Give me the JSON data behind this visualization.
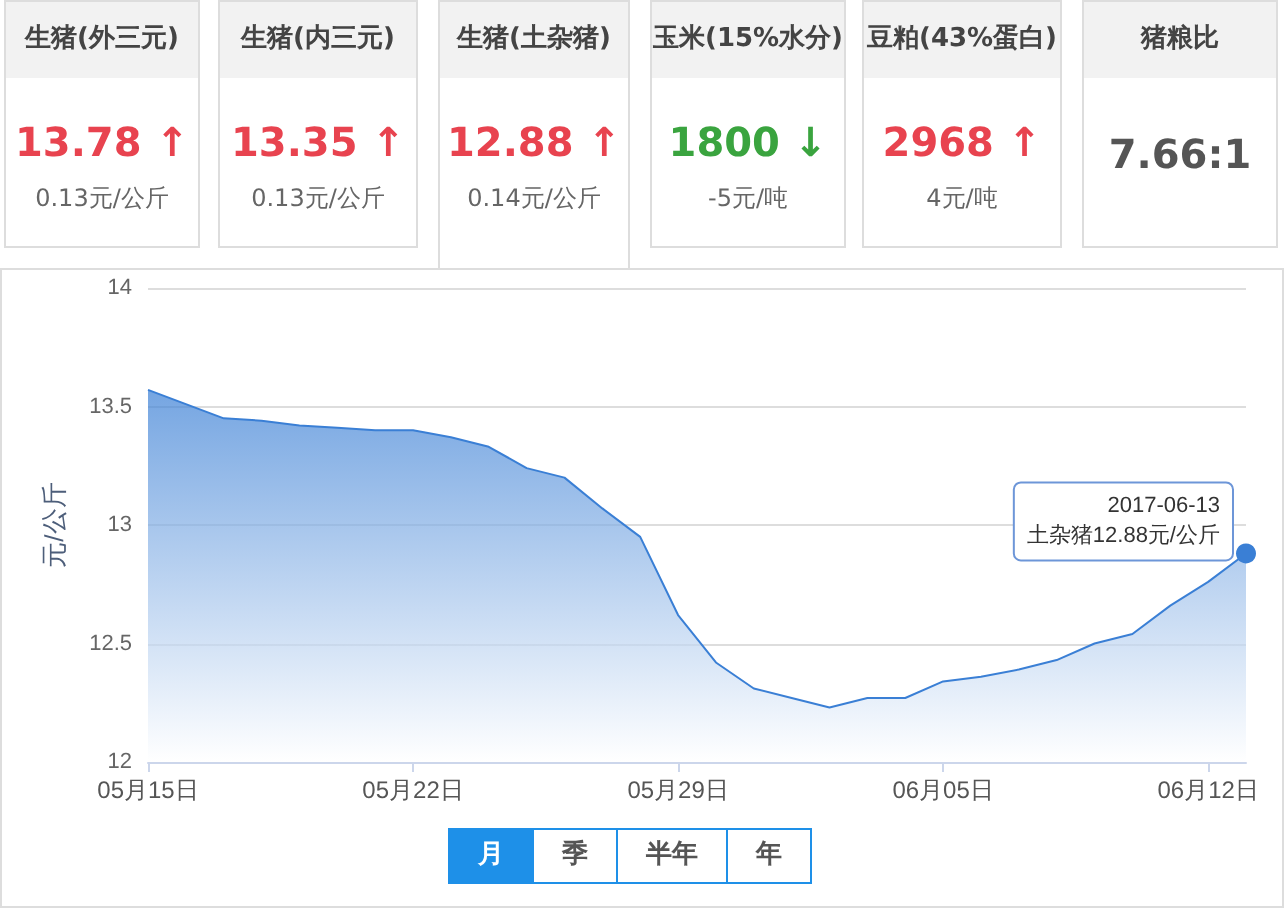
{
  "chart_data": [
    {
      "type": "other",
      "annotations": [
        "生猪(外三元)",
        "13.78 ↑",
        "0.13元/公斤"
      ],
      "color": "#e8434f"
    },
    {
      "type": "other",
      "annotations": [
        "生猪(内三元)",
        "13.35 ↑",
        "0.13元/公斤"
      ],
      "color": "#e8434f"
    },
    {
      "type": "other",
      "annotations": [
        "生猪(土杂猪)",
        "12.88 ↑",
        "0.14元/公斤"
      ],
      "color": "#e8434f"
    },
    {
      "type": "other",
      "annotations": [
        "玉米(15%水分)",
        "1800 ↓",
        "-5元/吨"
      ],
      "color": "#3aa43f"
    },
    {
      "type": "other",
      "annotations": [
        "豆粕(43%蛋白)",
        "2968 ↑",
        "4元/吨"
      ],
      "color": "#e8434f"
    },
    {
      "type": "other",
      "annotations": [
        "猪粮比",
        "7.66:1"
      ],
      "color": "#555555"
    },
    {
      "type": "area",
      "ylabel": "元/公斤",
      "x": [
        "2017-05-15",
        "2017-05-16",
        "2017-05-17",
        "2017-05-18",
        "2017-05-19",
        "2017-05-20",
        "2017-05-21",
        "2017-05-22",
        "2017-05-23",
        "2017-05-24",
        "2017-05-25",
        "2017-05-26",
        "2017-05-27",
        "2017-05-28",
        "2017-05-29",
        "2017-05-30",
        "2017-05-31",
        "2017-06-01",
        "2017-06-02",
        "2017-06-03",
        "2017-06-04",
        "2017-06-05",
        "2017-06-06",
        "2017-06-07",
        "2017-06-08",
        "2017-06-09",
        "2017-06-10",
        "2017-06-11",
        "2017-06-12",
        "2017-06-13"
      ],
      "series": [
        {
          "color": "#3a7fd5",
          "values": [
            13.57,
            13.51,
            13.45,
            13.44,
            13.42,
            13.41,
            13.4,
            13.4,
            13.37,
            13.33,
            13.24,
            13.2,
            13.07,
            12.95,
            12.62,
            12.42,
            12.31,
            12.27,
            12.23,
            12.27,
            12.27,
            12.34,
            12.36,
            12.39,
            12.43,
            12.5,
            12.54,
            12.66,
            12.76,
            12.88
          ]
        }
      ],
      "xlim": [
        "2017-05-15",
        "2017-06-13"
      ],
      "xticks": [
        {
          "value": "2017-05-15",
          "label": "05月15日"
        },
        {
          "value": "2017-05-22",
          "label": "05月22日"
        },
        {
          "value": "2017-05-29",
          "label": "05月29日"
        },
        {
          "value": "2017-06-05",
          "label": "06月05日"
        },
        {
          "value": "2017-06-12",
          "label": "06月12日"
        }
      ],
      "ylim": [
        12,
        14
      ],
      "yticks": [
        12,
        12.5,
        13,
        13.5,
        14
      ],
      "grid": "y",
      "marker": "none",
      "annotations": [
        {
          "text": "2017-06-13\n土杂猪12.88元/公斤",
          "x": "2017-06-13",
          "y": 12.88
        }
      ]
    },
    {
      "type": "other",
      "annotations": [
        "月",
        "季",
        "半年",
        "年"
      ],
      "color": "#1e90e8"
    }
  ]
}
